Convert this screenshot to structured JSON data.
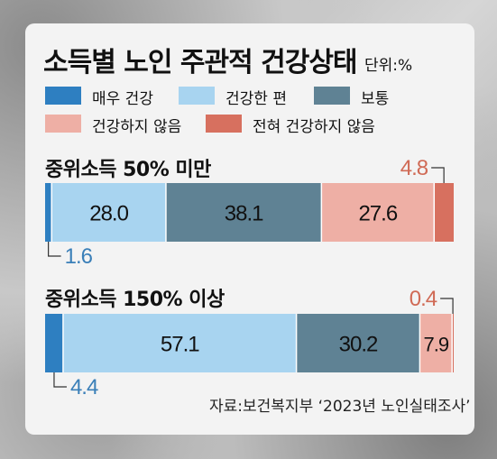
{
  "title": "소득별 노인 주관적 건강상태",
  "unit": "단위:%",
  "source": "자료:보건복지부 ‘2023년 노인실태조사’",
  "chart_data": {
    "type": "bar",
    "orientation": "horizontal",
    "stacked": true,
    "scale": "percent",
    "categories": [
      "중위소득 50% 미만",
      "중위소득 150% 이상"
    ],
    "series": [
      {
        "name": "매우 건강",
        "color": "#2e7fc1",
        "values": [
          1.6,
          4.4
        ],
        "value_labels": [
          "1.6",
          "4.4"
        ]
      },
      {
        "name": "건강한 편",
        "color": "#a8d4f0",
        "values": [
          28.0,
          57.1
        ],
        "value_labels": [
          "28.0",
          "57.1"
        ]
      },
      {
        "name": "보통",
        "color": "#5f8294",
        "values": [
          38.1,
          30.2
        ],
        "value_labels": [
          "38.1",
          "30.2"
        ]
      },
      {
        "name": "건강하지 않음",
        "color": "#eeafa5",
        "values": [
          27.6,
          7.9
        ],
        "value_labels": [
          "27.6",
          "7.9"
        ]
      },
      {
        "name": "전혀 건강하지 않음",
        "color": "#d7705f",
        "values": [
          4.8,
          0.4
        ],
        "value_labels": [
          "4.8",
          "0.4"
        ]
      }
    ],
    "legend_position": "top",
    "grid": false
  }
}
